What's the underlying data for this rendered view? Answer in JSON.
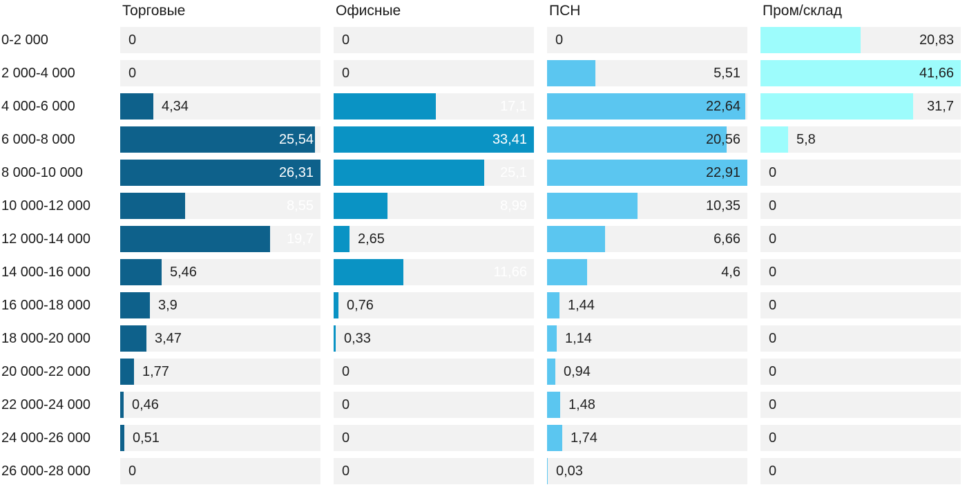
{
  "chart_data": {
    "type": "bar",
    "orientation": "horizontal",
    "title": "",
    "legend_position": "top-as-column-headers",
    "grid": false,
    "normalization": "each column's bars are scaled to that column's own maximum value",
    "value_decimal_separator": ",",
    "categories": [
      "0-2 000",
      "2 000-4 000",
      "4 000-6 000",
      "6 000-8 000",
      "8 000-10 000",
      "10 000-12 000",
      "12 000-14 000",
      "14 000-16 000",
      "16 000-18 000",
      "18 000-20 000",
      "20 000-22 000",
      "22 000-24 000",
      "24 000-26 000",
      "26 000-28 000"
    ],
    "series": [
      {
        "name": "Торговые",
        "color": "#0e618b",
        "label_color_inside": "#ffffff",
        "values": [
          0,
          0,
          4.34,
          25.54,
          26.31,
          8.55,
          19.7,
          5.46,
          3.9,
          3.47,
          1.77,
          0.46,
          0.51,
          0
        ],
        "labels": [
          "0",
          "0",
          "4,34",
          "25,54",
          "26,31",
          "8,55",
          "19,7",
          "5,46",
          "3,9",
          "3,47",
          "1,77",
          "0,46",
          "0,51",
          "0"
        ]
      },
      {
        "name": "Офисные",
        "color": "#0a93c4",
        "label_color_inside": "#ffffff",
        "values": [
          0,
          0,
          17.1,
          33.41,
          25.1,
          8.99,
          2.65,
          11.66,
          0.76,
          0.33,
          0,
          0,
          0,
          0
        ],
        "labels": [
          "0",
          "0",
          "17,1",
          "33,41",
          "25,1",
          "8,99",
          "2,65",
          "11,66",
          "0,76",
          "0,33",
          "0",
          "0",
          "0",
          "0"
        ]
      },
      {
        "name": "ПСН",
        "color": "#5bc6f0",
        "label_color_inside": "#1f1f1f",
        "values": [
          0,
          5.51,
          22.64,
          20.56,
          22.91,
          10.35,
          6.66,
          4.6,
          1.44,
          1.14,
          0.94,
          1.48,
          1.74,
          0.03
        ],
        "labels": [
          "0",
          "5,51",
          "22,64",
          "20,56",
          "22,91",
          "10,35",
          "6,66",
          "4,6",
          "1,44",
          "1,14",
          "0,94",
          "1,48",
          "1,74",
          "0,03"
        ]
      },
      {
        "name": "Пром/склад",
        "color": "#9dfcfc",
        "label_color_inside": "#1f1f1f",
        "values": [
          20.83,
          41.66,
          31.7,
          5.8,
          0,
          0,
          0,
          0,
          0,
          0,
          0,
          0,
          0,
          0
        ],
        "labels": [
          "20,83",
          "41,66",
          "31,7",
          "5,8",
          "0",
          "0",
          "0",
          "0",
          "0",
          "0",
          "0",
          "0",
          "0",
          "0"
        ]
      }
    ],
    "colors": {
      "track": "#f2f2f2",
      "text": "#1a1a1a",
      "background": "#ffffff"
    }
  }
}
